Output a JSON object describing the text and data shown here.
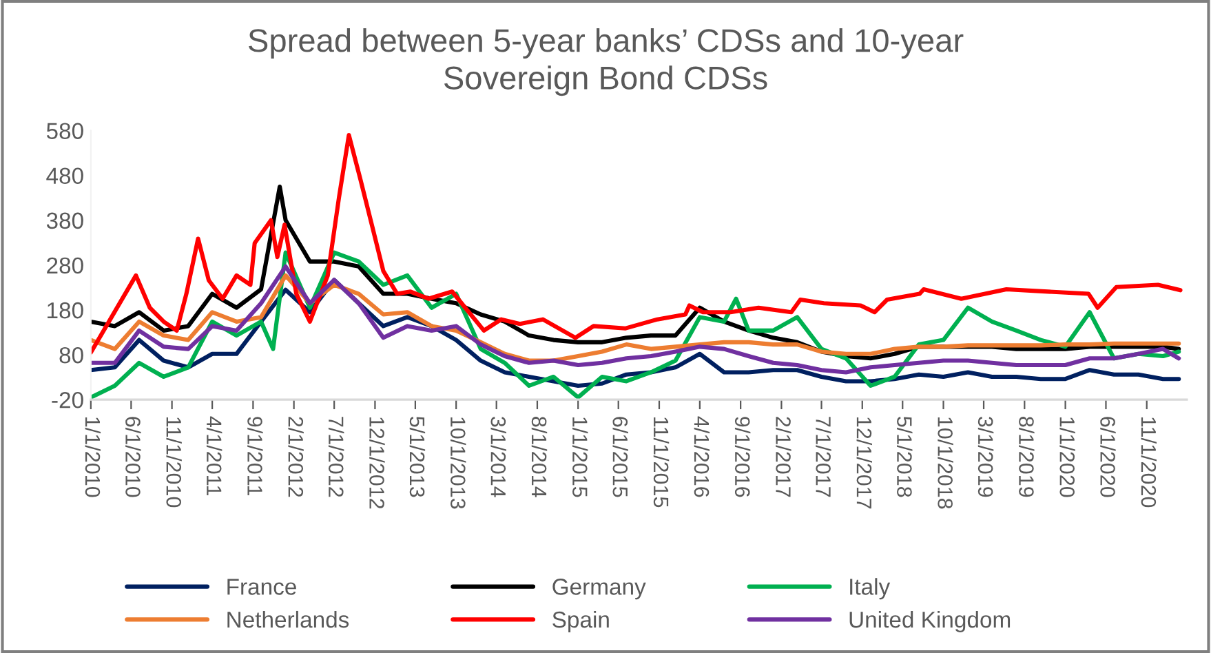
{
  "chart_data": {
    "type": "line",
    "title": "Spread between 5-year banks’ CDSs and 10-year\nSovereign Bond CDSs",
    "x": [
      "2010-01-01",
      "2010-04-01",
      "2010-07-01",
      "2010-10-01",
      "2011-01-01",
      "2011-04-01",
      "2011-07-01",
      "2011-10-01",
      "2012-01-01",
      "2012-04-01",
      "2012-07-01",
      "2012-10-01",
      "2013-01-01",
      "2013-04-01",
      "2013-07-01",
      "2013-10-01",
      "2014-01-01",
      "2014-04-01",
      "2014-07-01",
      "2014-10-01",
      "2015-01-01",
      "2015-04-01",
      "2015-07-01",
      "2015-10-01",
      "2016-01-01",
      "2016-04-01",
      "2016-07-01",
      "2016-10-01",
      "2017-01-01",
      "2017-04-01",
      "2017-07-01",
      "2017-10-01",
      "2018-01-01",
      "2018-04-01",
      "2018-07-01",
      "2018-10-01",
      "2019-01-01",
      "2019-04-01",
      "2019-07-01",
      "2019-10-01",
      "2020-01-01",
      "2020-04-01",
      "2020-07-01",
      "2020-10-01",
      "2021-01-01",
      "2021-03-01"
    ],
    "series": [
      {
        "name": "France",
        "color": "#002060",
        "values": [
          46,
          52,
          113,
          67,
          52,
          82,
          82,
          154,
          225,
          175,
          247,
          195,
          144,
          164,
          144,
          113,
          67,
          41,
          31,
          21,
          11,
          16,
          36,
          41,
          52,
          82,
          41,
          41,
          46,
          46,
          31,
          21,
          21,
          26,
          36,
          31,
          41,
          31,
          31,
          26,
          26,
          46,
          36,
          36,
          26,
          26
        ]
      },
      {
        "name": "Germany",
        "color": "#000000",
        "x": [
          "2010-01-01",
          "2010-04-01",
          "2010-07-01",
          "2010-10-01",
          "2011-01-01",
          "2011-04-01",
          "2011-07-01",
          "2011-10-01",
          "2011-12-10",
          "2012-01-01",
          "2012-04-01",
          "2012-07-01",
          "2012-10-01",
          "2013-01-01",
          "2013-04-01",
          "2013-07-01",
          "2013-10-01",
          "2014-01-01",
          "2014-04-01",
          "2014-07-01",
          "2014-10-01",
          "2015-01-01",
          "2015-04-01",
          "2015-07-01",
          "2015-10-01",
          "2016-01-01",
          "2016-04-01",
          "2016-07-01",
          "2016-10-01",
          "2017-01-01",
          "2017-04-01",
          "2017-07-01",
          "2017-10-01",
          "2018-01-01",
          "2018-04-01",
          "2018-07-01",
          "2018-10-01",
          "2019-01-01",
          "2019-04-01",
          "2019-07-01",
          "2019-10-01",
          "2020-01-01",
          "2020-04-01",
          "2020-07-01",
          "2020-10-01",
          "2021-01-01",
          "2021-03-01"
        ],
        "values": [
          154,
          144,
          175,
          134,
          144,
          216,
          185,
          226,
          455,
          380,
          288,
          288,
          277,
          216,
          216,
          205,
          195,
          170,
          154,
          123,
          113,
          108,
          108,
          118,
          123,
          123,
          185,
          154,
          134,
          118,
          108,
          87,
          77,
          72,
          82,
          98,
          98,
          98,
          98,
          93,
          93,
          93,
          98,
          98,
          98,
          98,
          93
        ]
      },
      {
        "name": "Italy",
        "color": "#00b050",
        "x": [
          "2010-01-01",
          "2010-04-01",
          "2010-07-01",
          "2010-10-01",
          "2011-01-01",
          "2011-04-01",
          "2011-07-01",
          "2011-10-01",
          "2011-11-15",
          "2012-01-01",
          "2012-04-01",
          "2012-07-01",
          "2012-10-01",
          "2013-01-01",
          "2013-04-01",
          "2013-07-01",
          "2013-10-01",
          "2014-01-01",
          "2014-04-01",
          "2014-07-01",
          "2014-10-01",
          "2015-01-01",
          "2015-04-01",
          "2015-07-01",
          "2015-10-01",
          "2016-01-01",
          "2016-04-01",
          "2016-07-01",
          "2016-08-15",
          "2016-10-01",
          "2017-01-01",
          "2017-04-01",
          "2017-07-01",
          "2017-10-01",
          "2018-01-01",
          "2018-04-01",
          "2018-07-01",
          "2018-10-01",
          "2019-01-01",
          "2019-04-01",
          "2019-07-01",
          "2019-10-01",
          "2020-01-01",
          "2020-04-01",
          "2020-07-01",
          "2020-10-01",
          "2021-01-01",
          "2021-03-01"
        ],
        "values": [
          -15,
          11,
          62,
          31,
          52,
          154,
          123,
          154,
          93,
          308,
          185,
          308,
          288,
          236,
          257,
          185,
          216,
          93,
          62,
          11,
          31,
          -15,
          31,
          21,
          41,
          67,
          164,
          154,
          205,
          134,
          134,
          164,
          93,
          72,
          11,
          31,
          103,
          113,
          185,
          154,
          134,
          113,
          98,
          175,
          72,
          82,
          77,
          87
        ]
      },
      {
        "name": "Netherlands",
        "color": "#ed7d31",
        "values": [
          113,
          93,
          154,
          123,
          113,
          175,
          154,
          164,
          257,
          195,
          236,
          216,
          170,
          175,
          144,
          134,
          108,
          82,
          67,
          67,
          77,
          87,
          103,
          93,
          98,
          103,
          108,
          108,
          103,
          103,
          87,
          82,
          82,
          93,
          98,
          98,
          101,
          101,
          101,
          101,
          103,
          103,
          105,
          105,
          105,
          105
        ]
      },
      {
        "name": "Spain",
        "color": "#ff0000",
        "x": [
          "2010-01-01",
          "2010-06-19",
          "2010-08-10",
          "2010-10-01",
          "2010-11-19",
          "2010-12-25",
          "2011-02-07",
          "2011-03-19",
          "2011-05-10",
          "2011-07-01",
          "2011-08-22",
          "2011-09-07",
          "2011-11-07",
          "2011-12-01",
          "2011-12-28",
          "2012-02-10",
          "2012-04-01",
          "2012-06-07",
          "2012-07-19",
          "2012-08-25",
          "2012-10-07",
          "2012-11-19",
          "2013-01-01",
          "2013-02-22",
          "2013-04-13",
          "2013-06-19",
          "2013-09-16",
          "2013-11-04",
          "2014-01-13",
          "2014-03-19",
          "2014-05-28",
          "2014-08-22",
          "2014-12-22",
          "2015-02-28",
          "2015-06-28",
          "2015-10-25",
          "2016-02-07",
          "2016-02-22",
          "2016-04-13",
          "2016-07-25",
          "2016-11-07",
          "2017-03-10",
          "2017-04-13",
          "2017-07-10",
          "2017-11-25",
          "2018-01-16",
          "2018-03-04",
          "2018-07-04",
          "2018-07-19",
          "2018-12-07",
          "2019-05-25",
          "2020-03-28",
          "2020-05-01",
          "2020-07-10",
          "2020-12-13",
          "2021-03-07"
        ],
        "values": [
          85,
          257,
          185,
          154,
          134,
          216,
          339,
          246,
          205,
          257,
          236,
          329,
          380,
          298,
          370,
          216,
          154,
          257,
          431,
          570,
          472,
          370,
          267,
          216,
          221,
          205,
          221,
          185,
          134,
          159,
          149,
          159,
          118,
          144,
          139,
          159,
          170,
          190,
          175,
          175,
          185,
          175,
          203,
          195,
          190,
          175,
          203,
          216,
          226,
          205,
          226,
          216,
          185,
          231,
          236,
          224
        ]
      },
      {
        "name": "United Kingdom",
        "color": "#7030a0",
        "values": [
          62,
          62,
          134,
          98,
          93,
          144,
          134,
          195,
          277,
          195,
          247,
          195,
          118,
          144,
          134,
          144,
          103,
          77,
          62,
          67,
          57,
          62,
          72,
          77,
          87,
          98,
          93,
          77,
          62,
          57,
          46,
          41,
          52,
          57,
          62,
          67,
          67,
          62,
          57,
          57,
          57,
          72,
          72,
          82,
          93,
          72
        ]
      }
    ],
    "xlim": [
      "2010-01-01",
      "2021-03-31"
    ],
    "xticks": [
      {
        "value": "2010-01-01",
        "label": "1/1/2010"
      },
      {
        "value": "2010-06-01",
        "label": "6/1/2010"
      },
      {
        "value": "2010-11-01",
        "label": "11/1/2010"
      },
      {
        "value": "2011-04-01",
        "label": "4/1/2011"
      },
      {
        "value": "2011-09-01",
        "label": "9/1/2011"
      },
      {
        "value": "2012-02-01",
        "label": "2/1/2012"
      },
      {
        "value": "2012-07-01",
        "label": "7/1/2012"
      },
      {
        "value": "2012-12-01",
        "label": "12/1/2012"
      },
      {
        "value": "2013-05-01",
        "label": "5/1/2013"
      },
      {
        "value": "2013-10-01",
        "label": "10/1/2013"
      },
      {
        "value": "2014-03-01",
        "label": "3/1/2014"
      },
      {
        "value": "2014-08-01",
        "label": "8/1/2014"
      },
      {
        "value": "2015-01-01",
        "label": "1/1/2015"
      },
      {
        "value": "2015-06-01",
        "label": "6/1/2015"
      },
      {
        "value": "2015-11-01",
        "label": "11/1/2015"
      },
      {
        "value": "2016-04-01",
        "label": "4/1/2016"
      },
      {
        "value": "2016-09-01",
        "label": "9/1/2016"
      },
      {
        "value": "2017-02-01",
        "label": "2/1/2017"
      },
      {
        "value": "2017-07-01",
        "label": "7/1/2017"
      },
      {
        "value": "2017-12-01",
        "label": "12/1/2017"
      },
      {
        "value": "2018-05-01",
        "label": "5/1/2018"
      },
      {
        "value": "2018-10-01",
        "label": "10/1/2018"
      },
      {
        "value": "2019-03-01",
        "label": "3/1/2019"
      },
      {
        "value": "2019-08-01",
        "label": "8/1/2019"
      },
      {
        "value": "2020-01-01",
        "label": "1/1/2020"
      },
      {
        "value": "2020-06-01",
        "label": "6/1/2020"
      },
      {
        "value": "2020-11-01",
        "label": "11/1/2020"
      }
    ],
    "ylim": [
      -20,
      580
    ],
    "yticks": [
      -20,
      80,
      180,
      280,
      380,
      480,
      580
    ],
    "grid": false,
    "legend": "bottom",
    "marker": "none",
    "line_style": "solid"
  }
}
